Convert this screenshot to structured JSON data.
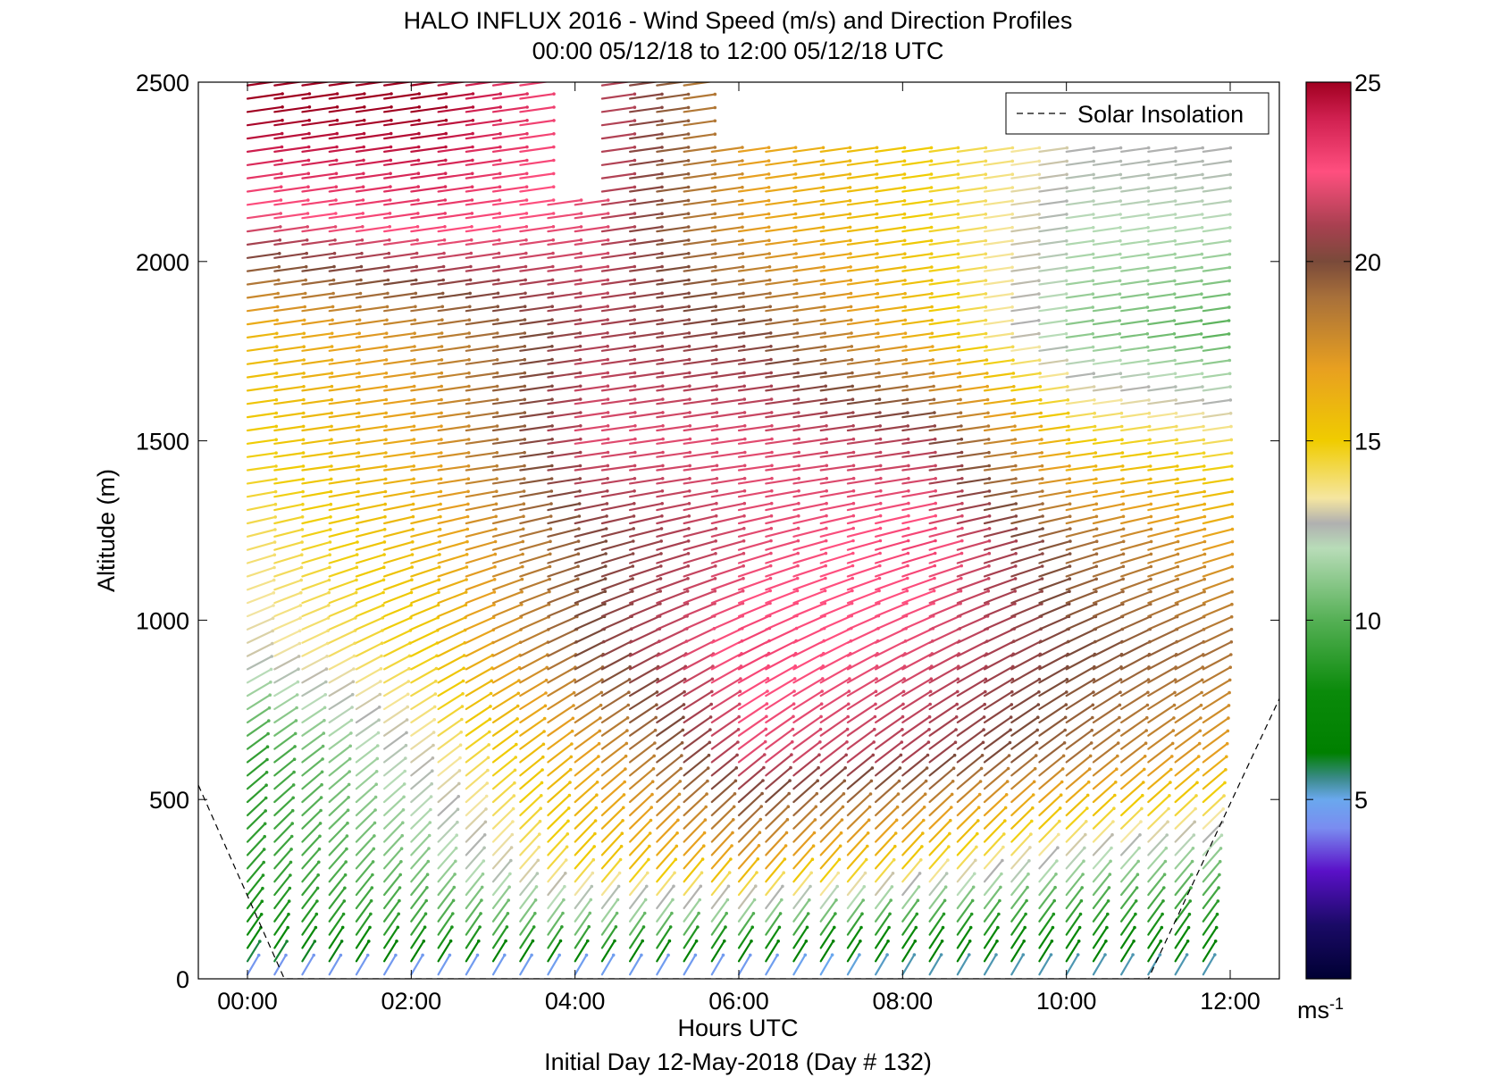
{
  "chart_data": {
    "type": "wind-barb-profile",
    "title": "HALO INFLUX 2016 - Wind Speed (m/s) and Direction Profiles",
    "subtitle": "00:00 05/12/18 to 12:00 05/12/18  UTC",
    "xlabel": "Hours UTC",
    "xlabel2": "Initial Day 12-May-2018 (Day # 132)",
    "ylabel": "Altitude (m)",
    "xlim_hours": [
      -0.6,
      12.6
    ],
    "ylim": [
      0,
      2500
    ],
    "x_ticks": [
      {
        "value": 0,
        "label": "00:00"
      },
      {
        "value": 2,
        "label": "02:00"
      },
      {
        "value": 4,
        "label": "04:00"
      },
      {
        "value": 6,
        "label": "06:00"
      },
      {
        "value": 8,
        "label": "08:00"
      },
      {
        "value": 10,
        "label": "10:00"
      },
      {
        "value": 12,
        "label": "12:00"
      }
    ],
    "y_ticks": [
      {
        "value": 0,
        "label": "0"
      },
      {
        "value": 500,
        "label": "500"
      },
      {
        "value": 1000,
        "label": "1000"
      },
      {
        "value": 1500,
        "label": "1500"
      },
      {
        "value": 2000,
        "label": "2000"
      },
      {
        "value": 2500,
        "label": "2500"
      }
    ],
    "legend": {
      "label": "Solar Insolation",
      "placement": "top-right"
    },
    "colorbar": {
      "min": 0,
      "max": 25,
      "ticks": [
        {
          "value": 5,
          "label": "5"
        },
        {
          "value": 10,
          "label": "10"
        },
        {
          "value": 15,
          "label": "15"
        },
        {
          "value": 20,
          "label": "20"
        },
        {
          "value": 25,
          "label": "25"
        }
      ],
      "unit": "ms",
      "unit_exp": "-1",
      "stops": [
        {
          "v": 0,
          "color": "#000033"
        },
        {
          "v": 1.5,
          "color": "#1a0a66"
        },
        {
          "v": 3,
          "color": "#5a10c8"
        },
        {
          "v": 4.2,
          "color": "#7a8cf0"
        },
        {
          "v": 5,
          "color": "#6aa8ee"
        },
        {
          "v": 5.6,
          "color": "#3a8a88"
        },
        {
          "v": 6.3,
          "color": "#008000"
        },
        {
          "v": 8,
          "color": "#0a8a0a"
        },
        {
          "v": 10,
          "color": "#55b055"
        },
        {
          "v": 12,
          "color": "#b8dcb8"
        },
        {
          "v": 12.7,
          "color": "#b0b0b0"
        },
        {
          "v": 13.4,
          "color": "#f5e6a0"
        },
        {
          "v": 15,
          "color": "#f0cc00"
        },
        {
          "v": 17,
          "color": "#e8a020"
        },
        {
          "v": 19,
          "color": "#a8703a"
        },
        {
          "v": 20,
          "color": "#7a4a3a"
        },
        {
          "v": 21,
          "color": "#a84050"
        },
        {
          "v": 22.5,
          "color": "#ff4f7f"
        },
        {
          "v": 24,
          "color": "#d02050"
        },
        {
          "v": 25,
          "color": "#a00020"
        }
      ]
    },
    "wind_field": {
      "times_hours": [
        0.0,
        0.33,
        0.67,
        1.0,
        1.33,
        1.67,
        2.0,
        2.33,
        2.67,
        3.0,
        3.33,
        3.67,
        4.0,
        4.33,
        4.67,
        5.0,
        5.33,
        5.67,
        6.0,
        6.33,
        6.67,
        7.0,
        7.33,
        7.67,
        8.0,
        8.33,
        8.67,
        9.0,
        9.33,
        9.67,
        10.0,
        10.33,
        10.67,
        11.0,
        11.33,
        11.67
      ],
      "altitude_step_m": 37,
      "altitude_max_m": 2500,
      "speed_anchor_times_hours": [
        0,
        2,
        4,
        6,
        8,
        10,
        11.7
      ],
      "speed_anchor_altitudes_m": [
        0,
        100,
        300,
        600,
        900,
        1200,
        1500,
        1800,
        2100,
        2400
      ],
      "speed_ms": [
        [
          4,
          4,
          4,
          4,
          5,
          5,
          5
        ],
        [
          8,
          9,
          10,
          9,
          8,
          8,
          8
        ],
        [
          9,
          11,
          15,
          17,
          15,
          12,
          11
        ],
        [
          9,
          13,
          17,
          22,
          21,
          19,
          17
        ],
        [
          13,
          15,
          20,
          23,
          22,
          20,
          19
        ],
        [
          14,
          16,
          20,
          22,
          23,
          19,
          17
        ],
        [
          15,
          17,
          22,
          22,
          21,
          15,
          14
        ],
        [
          16,
          18,
          21,
          20,
          16,
          11,
          10
        ],
        [
          22,
          23,
          22,
          17,
          15,
          12,
          12
        ],
        [
          25,
          25,
          22,
          17,
          15,
          13,
          13
        ]
      ],
      "direction_note": "westerly to southwesterly; wind vectors point to the east"
    },
    "solar_insolation": {
      "style": "dashed",
      "points_hours_m": [
        [
          -0.6,
          540
        ],
        [
          0.45,
          0
        ],
        [
          11.0,
          0
        ],
        [
          12.7,
          830
        ]
      ]
    }
  }
}
